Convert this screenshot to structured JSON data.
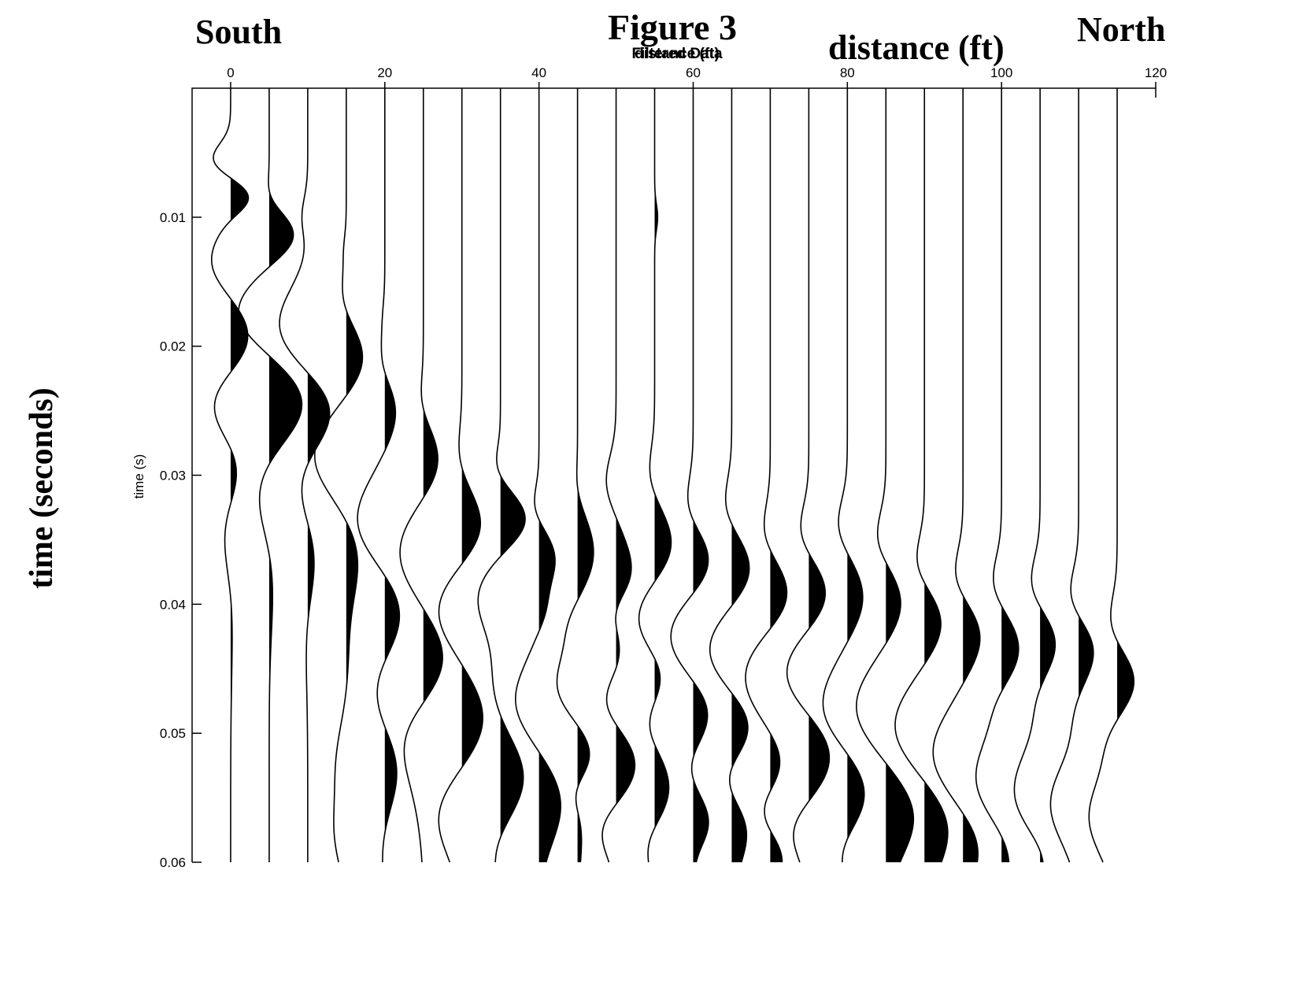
{
  "labels": {
    "south": "South",
    "north": "North",
    "figure": "Figure 3",
    "distance_axis": "distance (ft)",
    "time_axis_big": "time (seconds)",
    "time_axis_small": "time (s)",
    "subtitle_a": "Filtered Data",
    "subtitle_b": "distance (ft)"
  },
  "chart_data": {
    "type": "seismic-wiggle",
    "title": "Figure 3",
    "subtitle": "Filtered Data",
    "xlabel": "distance (ft)",
    "ylabel": "time (s)",
    "x_ticks": [
      0,
      20,
      40,
      60,
      80,
      100,
      120
    ],
    "y_ticks": [
      0.01,
      0.02,
      0.03,
      0.04,
      0.05,
      0.06
    ],
    "xlim": [
      -5,
      120
    ],
    "ylim": [
      0,
      0.06
    ],
    "y_inverted": true,
    "fill": "positive",
    "trace_offsets": [
      0,
      5,
      10,
      15,
      20,
      25,
      30,
      35,
      40,
      45,
      50,
      55,
      60,
      65,
      70,
      75,
      80,
      85,
      90,
      95,
      100,
      105,
      110,
      115
    ],
    "trace_scale_ft": 2.6,
    "traces": [
      {
        "offset": 0,
        "events": [
          [
            0.0055,
            -0.9,
            0.0012
          ],
          [
            0.0085,
            1.0,
            0.0012
          ],
          [
            0.0135,
            -1.0,
            0.0022
          ],
          [
            0.0195,
            1.0,
            0.0025
          ],
          [
            0.0245,
            -1.0,
            0.0025
          ],
          [
            0.0295,
            0.5,
            0.0025
          ],
          [
            0.0345,
            -0.4,
            0.003
          ],
          [
            0.04,
            0.1,
            0.005
          ]
        ]
      },
      {
        "offset": 5,
        "events": [
          [
            0.0085,
            -0.2,
            0.0012
          ],
          [
            0.0115,
            1.3,
            0.0018
          ],
          [
            0.0175,
            -1.6,
            0.0025
          ],
          [
            0.0245,
            1.7,
            0.0028
          ],
          [
            0.0315,
            -0.6,
            0.003
          ],
          [
            0.038,
            0.2,
            0.004
          ]
        ]
      },
      {
        "offset": 10,
        "events": [
          [
            0.01,
            -0.3,
            0.0015
          ],
          [
            0.0135,
            0.1,
            0.0025
          ],
          [
            0.0185,
            -1.5,
            0.003
          ],
          [
            0.025,
            1.3,
            0.0028
          ],
          [
            0.0305,
            -0.5,
            0.0028
          ],
          [
            0.0365,
            0.4,
            0.003
          ],
          [
            0.042,
            -0.1,
            0.004
          ]
        ]
      },
      {
        "offset": 15,
        "events": [
          [
            0.0125,
            -0.1,
            0.0012
          ],
          [
            0.0165,
            -0.3,
            0.002
          ],
          [
            0.021,
            0.9,
            0.0025
          ],
          [
            0.0285,
            -1.6,
            0.003
          ],
          [
            0.0365,
            0.6,
            0.003
          ],
          [
            0.044,
            0.1,
            0.003
          ],
          [
            0.0525,
            -0.5,
            0.003
          ],
          [
            0.058,
            -0.5,
            0.0025
          ]
        ]
      },
      {
        "offset": 20,
        "events": [
          [
            0.018,
            -0.1,
            0.0015
          ],
          [
            0.0215,
            -0.3,
            0.0018
          ],
          [
            0.025,
            0.6,
            0.0025
          ],
          [
            0.0335,
            -1.4,
            0.003
          ],
          [
            0.041,
            0.9,
            0.003
          ],
          [
            0.0465,
            -0.6,
            0.003
          ],
          [
            0.053,
            0.7,
            0.003
          ],
          [
            0.058,
            -0.2,
            0.003
          ]
        ]
      },
      {
        "offset": 25,
        "events": [
          [
            0.0245,
            -0.2,
            0.0018
          ],
          [
            0.029,
            0.8,
            0.0025
          ],
          [
            0.036,
            -1.2,
            0.003
          ],
          [
            0.0445,
            1.1,
            0.003
          ],
          [
            0.0505,
            -1.0,
            0.003
          ],
          [
            0.0555,
            -0.2,
            0.003
          ]
        ]
      },
      {
        "offset": 30,
        "events": [
          [
            0.0285,
            -0.2,
            0.002
          ],
          [
            0.034,
            1.0,
            0.0025
          ],
          [
            0.0405,
            -1.2,
            0.0028
          ],
          [
            0.049,
            1.1,
            0.003
          ],
          [
            0.0565,
            -1.2,
            0.003
          ]
        ]
      },
      {
        "offset": 35,
        "events": [
          [
            0.0295,
            -0.3,
            0.0015
          ],
          [
            0.0335,
            1.3,
            0.002
          ],
          [
            0.0395,
            -1.1,
            0.0025
          ],
          [
            0.0465,
            -0.4,
            0.003
          ],
          [
            0.0535,
            1.2,
            0.003
          ],
          [
            0.059,
            -0.4,
            0.0025
          ]
        ]
      },
      {
        "offset": 40,
        "events": [
          [
            0.0325,
            -0.3,
            0.0015
          ],
          [
            0.0365,
            0.8,
            0.002
          ],
          [
            0.0405,
            0.3,
            0.0015
          ],
          [
            0.0475,
            -1.2,
            0.0028
          ],
          [
            0.0555,
            1.1,
            0.003
          ]
        ]
      },
      {
        "offset": 45,
        "events": [
          [
            0.031,
            -0.1,
            0.0015
          ],
          [
            0.036,
            0.8,
            0.0025
          ],
          [
            0.0415,
            -0.4,
            0.0018
          ],
          [
            0.0465,
            -1.1,
            0.0025
          ],
          [
            0.0515,
            0.8,
            0.0025
          ],
          [
            0.0545,
            -0.5,
            0.0015
          ],
          [
            0.058,
            0.2,
            0.0025
          ]
        ]
      },
      {
        "offset": 50,
        "events": [
          [
            0.0305,
            -0.5,
            0.002
          ],
          [
            0.0375,
            0.8,
            0.0025
          ],
          [
            0.0405,
            -0.4,
            0.0015
          ],
          [
            0.0445,
            0.3,
            0.002
          ],
          [
            0.0475,
            -0.7,
            0.002
          ],
          [
            0.0525,
            1.0,
            0.0025
          ],
          [
            0.0575,
            -0.8,
            0.002
          ]
        ]
      },
      {
        "offset": 55,
        "events": [
          [
            0.01,
            0.15,
            0.001
          ],
          [
            0.03,
            -0.3,
            0.002
          ],
          [
            0.0355,
            0.9,
            0.0025
          ],
          [
            0.041,
            -0.9,
            0.0025
          ],
          [
            0.0455,
            0.5,
            0.002
          ],
          [
            0.0495,
            -0.5,
            0.002
          ],
          [
            0.0545,
            0.8,
            0.003
          ],
          [
            0.0585,
            -0.6,
            0.002
          ]
        ]
      },
      {
        "offset": 60,
        "events": [
          [
            0.0325,
            -0.4,
            0.002
          ],
          [
            0.037,
            1.0,
            0.0025
          ],
          [
            0.0425,
            -1.3,
            0.003
          ],
          [
            0.0485,
            1.0,
            0.0028
          ],
          [
            0.0525,
            -0.6,
            0.0022
          ],
          [
            0.057,
            0.9,
            0.0025
          ],
          [
            0.0595,
            -0.3,
            0.0015
          ]
        ]
      },
      {
        "offset": 65,
        "events": [
          [
            0.0325,
            -0.4,
            0.002
          ],
          [
            0.0375,
            1.0,
            0.0025
          ],
          [
            0.0435,
            -1.2,
            0.0028
          ],
          [
            0.0495,
            1.0,
            0.0025
          ],
          [
            0.0535,
            -0.6,
            0.002
          ],
          [
            0.0575,
            0.8,
            0.0025
          ]
        ]
      },
      {
        "offset": 70,
        "events": [
          [
            0.0345,
            -0.4,
            0.002
          ],
          [
            0.0395,
            1.0,
            0.0025
          ],
          [
            0.0455,
            -1.3,
            0.003
          ],
          [
            0.0525,
            0.7,
            0.0025
          ],
          [
            0.056,
            -0.7,
            0.002
          ],
          [
            0.0595,
            0.7,
            0.002
          ]
        ]
      },
      {
        "offset": 75,
        "events": [
          [
            0.0345,
            -0.5,
            0.002
          ],
          [
            0.0395,
            1.0,
            0.0025
          ],
          [
            0.0455,
            -1.3,
            0.003
          ],
          [
            0.0515,
            1.2,
            0.003
          ],
          [
            0.0575,
            -0.9,
            0.0022
          ]
        ]
      },
      {
        "offset": 80,
        "events": [
          [
            0.034,
            -0.5,
            0.002
          ],
          [
            0.0395,
            0.8,
            0.0025
          ],
          [
            0.048,
            -1.3,
            0.003
          ],
          [
            0.0545,
            1.0,
            0.003
          ],
          [
            0.059,
            -0.5,
            0.002
          ]
        ]
      },
      {
        "offset": 85,
        "events": [
          [
            0.035,
            -0.5,
            0.002
          ],
          [
            0.04,
            0.8,
            0.0025
          ],
          [
            0.048,
            -1.5,
            0.003
          ],
          [
            0.0565,
            1.4,
            0.003
          ]
        ]
      },
      {
        "offset": 90,
        "events": [
          [
            0.037,
            -0.5,
            0.002
          ],
          [
            0.0415,
            0.9,
            0.0025
          ],
          [
            0.0495,
            -1.5,
            0.003
          ],
          [
            0.0575,
            1.2,
            0.003
          ]
        ]
      },
      {
        "offset": 95,
        "events": [
          [
            0.038,
            -0.5,
            0.002
          ],
          [
            0.0425,
            0.9,
            0.0025
          ],
          [
            0.0515,
            -1.5,
            0.003
          ],
          [
            0.059,
            0.8,
            0.0025
          ]
        ]
      },
      {
        "offset": 100,
        "events": [
          [
            0.0385,
            -0.5,
            0.002
          ],
          [
            0.0435,
            0.9,
            0.0025
          ],
          [
            0.0475,
            -0.3,
            0.0018
          ],
          [
            0.0535,
            -1.3,
            0.003
          ],
          [
            0.0595,
            0.5,
            0.0025
          ]
        ]
      },
      {
        "offset": 105,
        "events": [
          [
            0.0385,
            -0.5,
            0.002
          ],
          [
            0.043,
            0.8,
            0.0022
          ],
          [
            0.0475,
            -0.2,
            0.0018
          ],
          [
            0.0545,
            -1.3,
            0.003
          ],
          [
            0.0595,
            0.4,
            0.002
          ]
        ]
      },
      {
        "offset": 110,
        "events": [
          [
            0.0395,
            -0.5,
            0.002
          ],
          [
            0.0435,
            0.8,
            0.0022
          ],
          [
            0.0485,
            -0.2,
            0.0018
          ],
          [
            0.0555,
            -1.4,
            0.003
          ]
        ]
      },
      {
        "offset": 115,
        "events": [
          [
            0.0415,
            -0.4,
            0.002
          ],
          [
            0.046,
            0.9,
            0.0022
          ],
          [
            0.0505,
            -0.4,
            0.002
          ],
          [
            0.0565,
            -1.4,
            0.003
          ]
        ]
      }
    ]
  }
}
